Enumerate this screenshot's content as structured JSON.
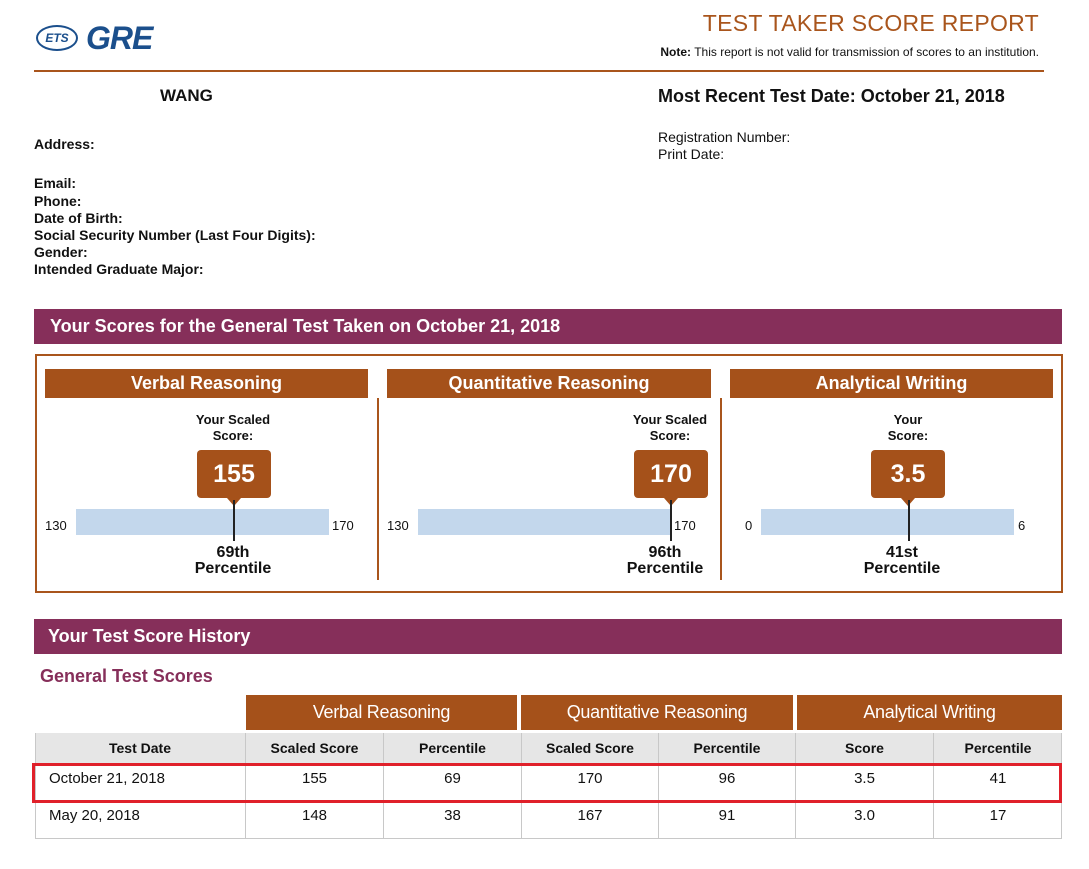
{
  "header": {
    "logo_ets": "ETS",
    "logo_gre": "GRE",
    "report_title": "TEST TAKER SCORE REPORT",
    "note_label": "Note:",
    "note_text": "This report is not valid for transmission of scores to an institution."
  },
  "personal": {
    "name": "WANG",
    "recent_test_date": "Most Recent Test Date: October 21, 2018",
    "address_label": "Address:",
    "email_label": "Email:",
    "phone_label": "Phone:",
    "dob_label": "Date of Birth:",
    "ssn_label": "Social Security Number (Last Four Digits):",
    "gender_label": "Gender:",
    "major_label": "Intended Graduate Major:",
    "registration_label": "Registration Number:",
    "print_date_label": "Print Date:"
  },
  "scores_section": {
    "title": "Your Scores for the General Test Taken on October 21, 2018",
    "sections": [
      {
        "name": "Verbal Reasoning",
        "score_label_line1": "Your Scaled",
        "score_label_line2": "Score:",
        "score": "155",
        "score_value": 155,
        "scale_min": "130",
        "scale_max": "170",
        "min_value": 130,
        "max_value": 170,
        "percentile": "69th",
        "percentile_word": "Percentile"
      },
      {
        "name": "Quantitative Reasoning",
        "score_label_line1": "Your Scaled",
        "score_label_line2": "Score:",
        "score": "170",
        "score_value": 170,
        "scale_min": "130",
        "scale_max": "170",
        "min_value": 130,
        "max_value": 170,
        "percentile": "96th",
        "percentile_word": "Percentile"
      },
      {
        "name": "Analytical Writing",
        "score_label_line1": "Your",
        "score_label_line2": "Score:",
        "score": "3.5",
        "score_value": 3.5,
        "scale_min": "0",
        "scale_max": "6",
        "min_value": 0,
        "max_value": 6,
        "percentile": "41st",
        "percentile_word": "Percentile"
      }
    ]
  },
  "history": {
    "title": "Your Test Score History",
    "subheading": "General Test Scores",
    "group_headers": [
      "Verbal Reasoning",
      "Quantitative Reasoning",
      "Analytical Writing"
    ],
    "columns": [
      "Test Date",
      "Scaled Score",
      "Percentile",
      "Scaled Score",
      "Percentile",
      "Score",
      "Percentile"
    ],
    "rows": [
      [
        "October 21, 2018",
        "155",
        "69",
        "170",
        "96",
        "3.5",
        "41"
      ],
      [
        "May 20, 2018",
        "148",
        "38",
        "167",
        "91",
        "3.0",
        "17"
      ]
    ]
  },
  "colors": {
    "accent_brown": "#a5511a",
    "section_purple": "#862f5a",
    "scale_blue": "#c3d7ec",
    "highlight_red": "#e0202a",
    "logo_blue": "#1b4f8c"
  }
}
